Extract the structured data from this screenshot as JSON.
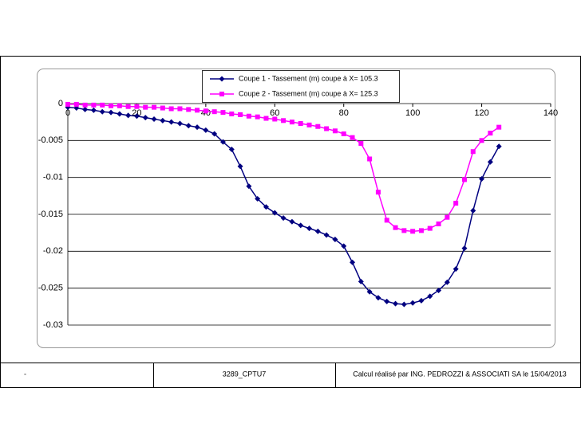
{
  "chart_data": {
    "type": "line",
    "x": [
      0,
      2.5,
      5,
      7.5,
      10,
      12.5,
      15,
      17.5,
      20,
      22.5,
      25,
      27.5,
      30,
      32.5,
      35,
      37.5,
      40,
      42.5,
      45,
      47.5,
      50,
      52.5,
      55,
      57.5,
      60,
      62.5,
      65,
      67.5,
      70,
      72.5,
      75,
      77.5,
      80,
      82.5,
      85,
      87.5,
      90,
      92.5,
      95,
      97.5,
      100,
      102.5,
      105,
      107.5,
      110,
      112.5,
      115,
      117.5,
      120,
      122.5,
      125
    ],
    "series": [
      {
        "name": "Coupe 1 -  Tassement (m) coupe à X= 105.3",
        "color": "#000080",
        "marker": "diamond",
        "values": [
          -0.0005,
          -0.0006,
          -0.0008,
          -0.0009,
          -0.0011,
          -0.0012,
          -0.0014,
          -0.0016,
          -0.0017,
          -0.0019,
          -0.0021,
          -0.0023,
          -0.0025,
          -0.0027,
          -0.003,
          -0.0032,
          -0.0036,
          -0.0041,
          -0.0052,
          -0.0062,
          -0.0085,
          -0.0112,
          -0.0129,
          -0.014,
          -0.0148,
          -0.0155,
          -0.016,
          -0.0165,
          -0.0169,
          -0.0173,
          -0.0178,
          -0.0184,
          -0.0193,
          -0.0215,
          -0.0241,
          -0.0255,
          -0.0263,
          -0.0268,
          -0.0271,
          -0.0272,
          -0.027,
          -0.0267,
          -0.0261,
          -0.0253,
          -0.0242,
          -0.0224,
          -0.0196,
          -0.0145,
          -0.0102,
          -0.0079,
          -0.0058
        ]
      },
      {
        "name": "Coupe 2 -  Tassement (m) coupe à X= 125.3",
        "color": "#ff00ff",
        "marker": "square",
        "values": [
          -0.0001,
          -0.0001,
          -0.0002,
          -0.0002,
          -0.0002,
          -0.0003,
          -0.0003,
          -0.0004,
          -0.0004,
          -0.0005,
          -0.0005,
          -0.0006,
          -0.0007,
          -0.0007,
          -0.0008,
          -0.0009,
          -0.001,
          -0.0011,
          -0.0012,
          -0.0014,
          -0.0015,
          -0.0017,
          -0.0018,
          -0.002,
          -0.0021,
          -0.0023,
          -0.0025,
          -0.0027,
          -0.0029,
          -0.0031,
          -0.0034,
          -0.0037,
          -0.0041,
          -0.0046,
          -0.0054,
          -0.0075,
          -0.012,
          -0.0158,
          -0.0168,
          -0.0172,
          -0.0173,
          -0.0172,
          -0.0169,
          -0.0163,
          -0.0154,
          -0.0135,
          -0.0103,
          -0.0065,
          -0.005,
          -0.004,
          -0.0032
        ]
      }
    ],
    "xlim": [
      0,
      140
    ],
    "xticks": [
      0,
      20,
      40,
      60,
      80,
      100,
      120,
      140
    ],
    "ylim": [
      -0.03,
      0
    ],
    "yticks": [
      0,
      -0.005,
      -0.01,
      -0.015,
      -0.02,
      -0.025,
      -0.03
    ],
    "grid": true,
    "legend": "top"
  },
  "footer": [
    "-",
    "3289_CPTU7",
    "Calcul réalisé par  ING. PEDROZZI  & ASSOCIATI SA  le 15/04/2013"
  ]
}
